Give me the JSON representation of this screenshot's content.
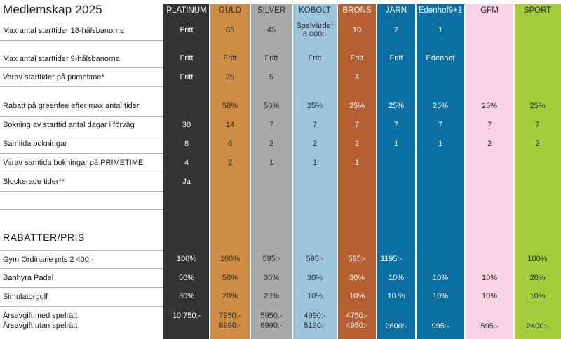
{
  "title": "Medlemskap 2025",
  "section_rabatter": "RABATTER/PRIS",
  "colors": {
    "platinum": "#333333",
    "guld": "#cd8d44",
    "silver": "#a9a9ac",
    "kobolt": "#9cc5dc",
    "brons": "#b65f32",
    "jarn": "#0c6fa1",
    "edenhof": "#0c6fa1",
    "gfm": "#f7d3e3",
    "sport": "#a6cc3c"
  },
  "columns": [
    "PLATINUM",
    "GULD",
    "SILVER",
    "KOBOLT",
    "BRONS",
    "JÄRN",
    "Edenhof9+1",
    "GFM",
    "SPORT"
  ],
  "row_labels": [
    "Max antal starttider 18-hålsbanorna",
    "Max antal starttider 9-hålsbanorna",
    "Varav starttider på primetime*",
    "Rabatt på greenfee efter max antal tider",
    "Bokning av starttid antal dagar i förväg",
    "Samtida bokningar",
    "Varav samtida bokningar på PRIMETIME",
    "Blockerade tider**",
    "Gym Ordinarie pris 2 400:-",
    "Banhyra Padel",
    "Simulatorgolf",
    "Årsavgift med spelrätt",
    "Årsavgift utan spelrätt"
  ],
  "values": {
    "platinum": [
      "Fritt",
      "Fritt",
      "Fritt",
      "",
      "30",
      "8",
      "4",
      "Ja",
      "100%",
      "50%",
      "30%",
      "10 750:-",
      ""
    ],
    "guld": [
      "65",
      "Fritt",
      "25",
      "50%",
      "14",
      "6",
      "2",
      "",
      "100%",
      "50%",
      "20%",
      "7950:-",
      "8990:-"
    ],
    "silver": [
      "45",
      "Fritt",
      "5",
      "50%",
      "7",
      "2",
      "1",
      "",
      "595:-",
      "30%",
      "20%",
      "5950:-",
      "6990:-"
    ],
    "kobolt": [
      "Spelvärde",
      "Fritt",
      "",
      "25%",
      "7",
      "2",
      "1",
      "",
      "595:-",
      "30%",
      "10%",
      "4990:-",
      "5190:-"
    ],
    "kobolt_sup": "1",
    "kobolt_line2": "8 000:-",
    "brons": [
      "10",
      "Fritt",
      "4",
      "25%",
      "7",
      "2",
      "1",
      "",
      "595:-",
      "30%",
      "10%",
      "4750:-",
      "4950:-"
    ],
    "jarn": [
      "2",
      "Fritt",
      "",
      "25%",
      "7",
      "1",
      "",
      "",
      "1195:-",
      "10%",
      "10 %",
      "",
      "2600:-"
    ],
    "edenhof": [
      "1",
      "Edenhof",
      "",
      "25%",
      "7",
      "1",
      "",
      "",
      "",
      "10%",
      "10%",
      "",
      "995:-"
    ],
    "gfm": [
      "",
      "",
      "",
      "25%",
      "7",
      "2",
      "",
      "",
      "",
      "10%",
      "10%",
      "",
      "595:-"
    ],
    "sport": [
      "",
      "",
      "",
      "25%",
      "7",
      "2",
      "",
      "",
      "100%",
      "20%",
      "10%",
      "",
      "2400:-"
    ]
  }
}
